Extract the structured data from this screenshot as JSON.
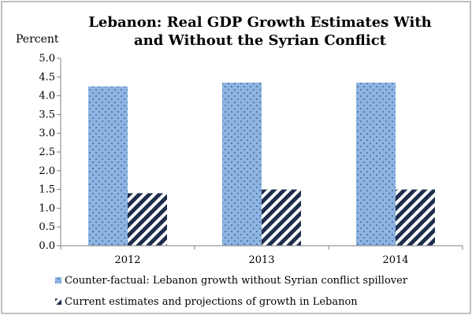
{
  "chart_data": {
    "type": "bar",
    "title": [
      "Lebanon: Real GDP Growth Estimates With",
      "and Without the Syrian Conflict"
    ],
    "ylabel": "Percent",
    "xlabel": "",
    "ylim": [
      0,
      5.0
    ],
    "ytick_step": 0.5,
    "yticks": [
      "0.0",
      "0.5",
      "1.0",
      "1.5",
      "2.0",
      "2.5",
      "3.0",
      "3.5",
      "4.0",
      "4.5",
      "5.0"
    ],
    "categories": [
      "2012",
      "2013",
      "2014"
    ],
    "grid": false,
    "legend_position": "bottom",
    "series": [
      {
        "name": "Counter-factual: Lebanon growth without Syrian conflict spillover",
        "values": [
          4.25,
          4.35,
          4.35
        ],
        "fill": "#8db4e2",
        "pattern": "dots"
      },
      {
        "name": "Current estimates and projections of growth in Lebanon",
        "values": [
          1.4,
          1.5,
          1.5
        ],
        "fill": "#1f2d4d",
        "pattern": "diagonal-stripes"
      }
    ],
    "colors": {
      "axis": "#808080",
      "text": "#000000",
      "frame": "#808080"
    }
  }
}
